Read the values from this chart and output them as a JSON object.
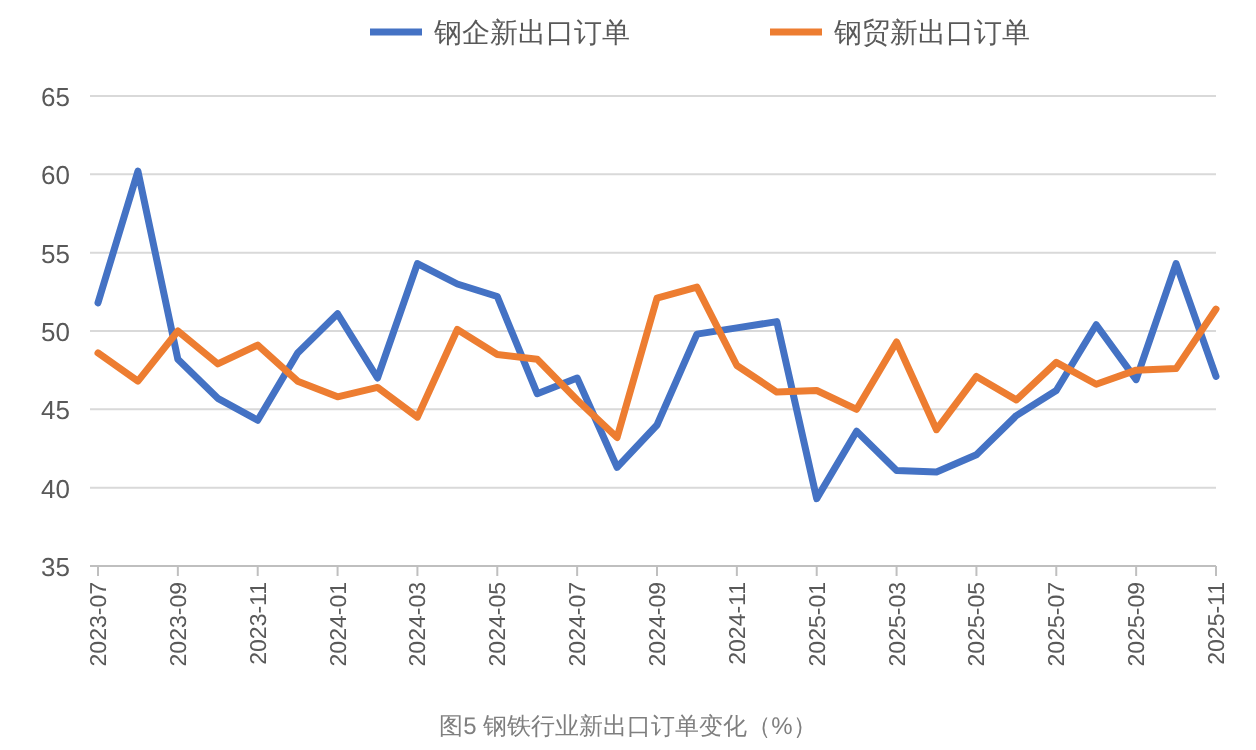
{
  "chart_data": {
    "type": "line",
    "categories": [
      "2023-07",
      null,
      "2023-09",
      null,
      "2023-11",
      null,
      "2024-01",
      null,
      "2024-03",
      null,
      "2024-05",
      null,
      "2024-07",
      null,
      "2024-09",
      null,
      "2024-11",
      null,
      "2025-01",
      null,
      "2025-03",
      null,
      "2025-05",
      null,
      "2025-07",
      null,
      "2025-09",
      null,
      "2025-11"
    ],
    "series": [
      {
        "name": "钢企新出口订单",
        "color": "#4472c4",
        "values": [
          51.8,
          60.2,
          48.2,
          45.7,
          44.3,
          48.6,
          51.1,
          47.0,
          54.3,
          53.0,
          52.2,
          46.0,
          47.0,
          41.3,
          44.0,
          49.8,
          50.2,
          50.6,
          39.3,
          43.6,
          41.1,
          41.0,
          42.1,
          44.6,
          46.2,
          50.4,
          46.9,
          54.3,
          47.1
        ]
      },
      {
        "name": "钢贸新出口订单",
        "color": "#ed7d31",
        "values": [
          48.6,
          46.8,
          50.0,
          47.9,
          49.1,
          46.8,
          45.8,
          46.4,
          44.5,
          50.1,
          48.5,
          48.2,
          45.6,
          43.2,
          52.1,
          52.8,
          47.8,
          46.1,
          46.2,
          45.0,
          49.3,
          43.7,
          47.1,
          45.6,
          48.0,
          46.6,
          47.5,
          47.6,
          51.4
        ]
      }
    ],
    "ylim": [
      35,
      65
    ],
    "yticks": [
      35,
      40,
      45,
      50,
      55,
      60,
      65
    ],
    "grid": "y",
    "legend": "top",
    "marker": "none",
    "line_style": "solid",
    "annotations": [
      "图5 钢铁行业新出口订单变化（%）"
    ]
  }
}
